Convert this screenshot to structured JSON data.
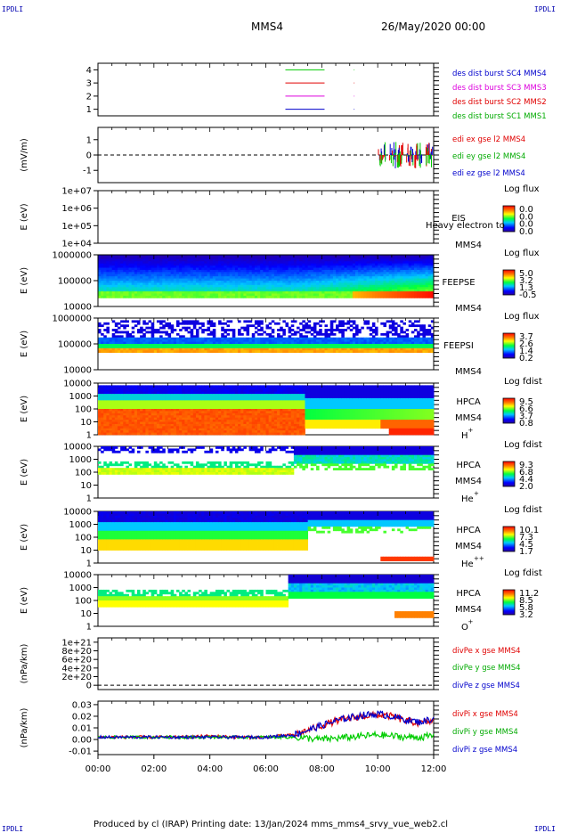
{
  "corners": {
    "tl": "IPDLI",
    "tr": "IPDLI",
    "bl": "IPDLI",
    "br": "IPDLI"
  },
  "header": {
    "spacecraft": "MMS4",
    "date": "26/May/2020 00:00"
  },
  "footer": {
    "text": "Produced by cl (IRAP)   Printing date: 13/Jan/2024   mms_mms4_srvy_vue_web2.cl"
  },
  "colors": {
    "red": "#e00000",
    "green": "#00cc00",
    "blue": "#0000cc",
    "magenta": "#dd00dd",
    "dark_green": "#00aa00"
  },
  "chart_data": [
    {
      "type": "line",
      "id": "burst",
      "ylabel": "",
      "yticks": [
        "1",
        "2",
        "3",
        "4"
      ],
      "ylim": [
        0.5,
        4.5
      ],
      "series": [
        {
          "name": "des dist burst SC1 MMS1",
          "color": "#00cc00",
          "y": 4,
          "x": [
            [
              6.7,
              8.1
            ],
            [
              9.15,
              9.17
            ]
          ]
        },
        {
          "name": "des dist burst SC2 MMS2",
          "color": "#e00000",
          "y": 3,
          "x": [
            [
              6.7,
              8.1
            ],
            [
              9.15,
              9.17
            ]
          ]
        },
        {
          "name": "des dist burst SC3 MMS3",
          "color": "#dd00dd",
          "y": 2,
          "x": [
            [
              6.7,
              8.1
            ],
            [
              9.15,
              9.17
            ]
          ]
        },
        {
          "name": "des dist burst SC4 MMS4",
          "color": "#0000cc",
          "y": 1,
          "x": [
            [
              6.7,
              8.1
            ],
            [
              9.15,
              9.17
            ]
          ]
        }
      ],
      "legend_colors": [
        "#0000cc",
        "#dd00dd",
        "#e00000",
        "#00aa00"
      ]
    },
    {
      "type": "line",
      "id": "edi",
      "ylabel": "(mV/m)",
      "yticks": [
        "-1",
        "0",
        "1"
      ],
      "ylim": [
        -1.8,
        1.8
      ],
      "series": [
        {
          "name": "edi ex gse l2 MMS4",
          "color": "#e00000"
        },
        {
          "name": "edi ey gse l2 MMS4",
          "color": "#00cc00"
        },
        {
          "name": "edi ez gse l2 MMS4",
          "color": "#0000cc"
        }
      ],
      "bursts": [
        10.15,
        10.55,
        10.8,
        11.15,
        11.45,
        11.85
      ],
      "legend_colors": [
        "#e00000",
        "#00aa00",
        "#0000cc"
      ]
    },
    {
      "type": "heatmap",
      "id": "eis",
      "ylabel": "E (eV)",
      "yticks": [
        "1e+04",
        "1e+05",
        "1e+06",
        "1e+07"
      ],
      "labels": [
        "EIS",
        "MMS4"
      ],
      "overlay": "Heavy electron to",
      "colorbar": {
        "title": "Log flux",
        "ticks": [
          "0.0",
          "0.0",
          "0.0",
          "0.0"
        ]
      }
    },
    {
      "type": "heatmap",
      "id": "feepse",
      "ylabel": "E (eV)",
      "yticks": [
        "10000",
        "100000",
        "1000000"
      ],
      "labels": [
        "FEEPSE",
        "MMS4"
      ],
      "colorbar": {
        "title": "Log flux",
        "ticks": [
          "5.0",
          "3.2",
          "1.3",
          "-0.5"
        ]
      }
    },
    {
      "type": "heatmap",
      "id": "feepsi",
      "ylabel": "E (eV)",
      "yticks": [
        "10000",
        "100000",
        "1000000"
      ],
      "labels": [
        "FEEPSI",
        "MMS4"
      ],
      "colorbar": {
        "title": "Log flux",
        "ticks": [
          "3.7",
          "2.6",
          "1.4",
          "0.2"
        ]
      }
    },
    {
      "type": "heatmap",
      "id": "hpca_h",
      "ylabel": "E (eV)",
      "yticks": [
        "1",
        "10",
        "100",
        "1000",
        "10000"
      ],
      "labels": [
        "HPCA",
        "MMS4",
        "H",
        "+"
      ],
      "colorbar": {
        "title": "Log fdist",
        "ticks": [
          "9.5",
          "6.6",
          "3.7",
          "0.8"
        ]
      }
    },
    {
      "type": "heatmap",
      "id": "hpca_he",
      "ylabel": "E (eV)",
      "yticks": [
        "1",
        "10",
        "100",
        "1000",
        "10000"
      ],
      "labels": [
        "HPCA",
        "MMS4",
        "He",
        "+"
      ],
      "colorbar": {
        "title": "Log fdist",
        "ticks": [
          "9.3",
          "6.8",
          "4.4",
          "2.0"
        ]
      }
    },
    {
      "type": "heatmap",
      "id": "hpca_he2",
      "ylabel": "E (eV)",
      "yticks": [
        "1",
        "10",
        "100",
        "1000",
        "10000"
      ],
      "labels": [
        "HPCA",
        "MMS4",
        "He",
        "++"
      ],
      "colorbar": {
        "title": "Log fdist",
        "ticks": [
          "10.1",
          "7.3",
          "4.5",
          "1.7"
        ]
      }
    },
    {
      "type": "heatmap",
      "id": "hpca_o",
      "ylabel": "E (eV)",
      "yticks": [
        "1",
        "10",
        "100",
        "1000",
        "10000"
      ],
      "labels": [
        "HPCA",
        "MMS4",
        "O",
        "+"
      ],
      "colorbar": {
        "title": "Log fdist",
        "ticks": [
          "11.2",
          "8.5",
          "5.8",
          "3.2"
        ]
      }
    },
    {
      "type": "line",
      "id": "divpe",
      "ylabel": "(nPa/km)",
      "yticks": [
        "0",
        "2e+20",
        "4e+20",
        "6e+20",
        "8e+20",
        "1e+21"
      ],
      "ylim": [
        -1e+20,
        1.1e+21
      ],
      "series": [
        {
          "name": "divPe x gse MMS4",
          "color": "#e00000"
        },
        {
          "name": "divPe y gse MMS4",
          "color": "#00cc00"
        },
        {
          "name": "divPe z gse MMS4",
          "color": "#0000cc"
        }
      ],
      "legend_colors": [
        "#e00000",
        "#00aa00",
        "#0000cc"
      ]
    },
    {
      "type": "line",
      "id": "divpi",
      "ylabel": "(nPa/km)",
      "yticks": [
        "-0.01",
        "0.00",
        "0.01",
        "0.02",
        "0.03"
      ],
      "ylim": [
        -0.013,
        0.033
      ],
      "series": [
        {
          "name": "divPi x gse MMS4",
          "color": "#e00000",
          "x": [
            0,
            1,
            2,
            3,
            4,
            5,
            6,
            7,
            7.5,
            8,
            8.5,
            9,
            9.5,
            10,
            10.5,
            11,
            11.5,
            12
          ],
          "y": [
            0.002,
            0.002,
            0.002,
            0.002,
            0.003,
            0.002,
            0.002,
            0.004,
            0.008,
            0.012,
            0.016,
            0.018,
            0.02,
            0.021,
            0.02,
            0.016,
            0.014,
            0.016
          ]
        },
        {
          "name": "divPi y gse MMS4",
          "color": "#00cc00",
          "x": [
            0,
            1,
            2,
            3,
            4,
            5,
            6,
            7,
            7.5,
            8,
            8.5,
            9,
            9.5,
            10,
            10.5,
            11,
            11.5,
            12
          ],
          "y": [
            0.002,
            0.002,
            0.002,
            0.002,
            0.002,
            0.002,
            0.002,
            0.002,
            0.001,
            0.0,
            0.001,
            0.002,
            0.003,
            0.004,
            0.003,
            0.002,
            0.002,
            0.003
          ]
        },
        {
          "name": "divPi z gse MMS4",
          "color": "#0000cc",
          "x": [
            0,
            1,
            2,
            3,
            4,
            5,
            6,
            7,
            7.5,
            8,
            8.5,
            9,
            9.5,
            10,
            10.5,
            11,
            11.5,
            12
          ],
          "y": [
            0.002,
            0.002,
            0.002,
            0.002,
            0.002,
            0.002,
            0.002,
            0.004,
            0.008,
            0.012,
            0.016,
            0.019,
            0.021,
            0.022,
            0.02,
            0.017,
            0.015,
            0.018
          ]
        }
      ],
      "legend_colors": [
        "#e00000",
        "#00aa00",
        "#0000cc"
      ]
    }
  ],
  "xaxis": {
    "ticks": [
      "00:00",
      "02:00",
      "04:00",
      "06:00",
      "08:00",
      "10:00",
      "12:00"
    ],
    "range_hours": [
      0,
      12
    ]
  }
}
